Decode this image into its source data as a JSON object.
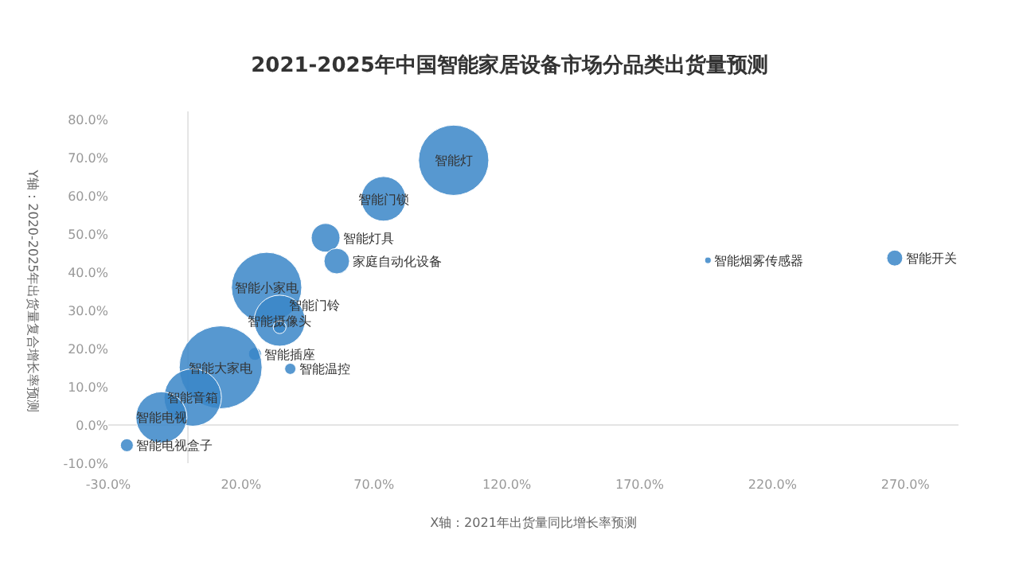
{
  "chart_data": {
    "type": "bubble",
    "title": "2021-2025年中国智能家居设备市场分品类出货量预测",
    "xlabel": "X轴：2021年出货量同比增长率预测",
    "ylabel": "Y轴：2020-2025年出货量复合增长率预测",
    "x": [
      100,
      73.6,
      51.8,
      56,
      29.6,
      34.5,
      34.5,
      25.2,
      38.5,
      12.3,
      1.8,
      -10,
      -23,
      195.7,
      266
    ],
    "values": [
      69.3,
      59.2,
      49,
      42.9,
      36,
      27.3,
      25.6,
      18.6,
      14.7,
      15.1,
      7.2,
      2,
      -5.3,
      43.1,
      43.7
    ],
    "sizes": [
      0.72,
      0.29,
      0.12,
      0.095,
      0.72,
      0.38,
      0.024,
      0.024,
      0.018,
      1,
      0.48,
      0.38,
      0.024,
      0.006,
      0.037
    ],
    "color": "#3a86c8",
    "annotations": [
      {
        "text": "智能灯",
        "x": 100,
        "y": 69.3
      },
      {
        "text": "智能门锁",
        "x": 73.6,
        "y": 59.2
      },
      {
        "text": "智能灯具",
        "x": 51.8,
        "y": 49
      },
      {
        "text": "家庭自动化设备",
        "x": 56,
        "y": 42.9
      },
      {
        "text": "智能小家电",
        "x": 29.6,
        "y": 36
      },
      {
        "text": "智能摄像头",
        "x": 34.5,
        "y": 27.3
      },
      {
        "text": "智能门铃",
        "x": 34.5,
        "y": 25.6
      },
      {
        "text": "智能插座",
        "x": 25.2,
        "y": 18.6
      },
      {
        "text": "智能温控",
        "x": 38.5,
        "y": 14.7
      },
      {
        "text": "智能大家电",
        "x": 12.3,
        "y": 15.1
      },
      {
        "text": "智能音箱",
        "x": 1.8,
        "y": 7.2
      },
      {
        "text": "智能电视",
        "x": -10,
        "y": 2
      },
      {
        "text": "智能电视盒子",
        "x": -23,
        "y": -5.3
      },
      {
        "text": "智能烟雾传感器",
        "x": 195.7,
        "y": 43.1
      },
      {
        "text": "智能开关",
        "x": 266,
        "y": 43.7
      }
    ],
    "xlim": [
      -30,
      290
    ],
    "xticks": [
      {
        "value": -30,
        "label": "-30.0%"
      },
      {
        "value": 20,
        "label": "20.0%"
      },
      {
        "value": 70,
        "label": "70.0%"
      },
      {
        "value": 120,
        "label": "120.0%"
      },
      {
        "value": 170,
        "label": "170.0%"
      },
      {
        "value": 220,
        "label": "220.0%"
      },
      {
        "value": 270,
        "label": "270.0%"
      }
    ],
    "ylim": [
      -10,
      80
    ],
    "yticks": [
      {
        "value": -10,
        "label": "-10.0%"
      },
      {
        "value": 0,
        "label": "0.0%"
      },
      {
        "value": 10,
        "label": "10.0%"
      },
      {
        "value": 20,
        "label": "20.0%"
      },
      {
        "value": 30,
        "label": "30.0%"
      },
      {
        "value": 40,
        "label": "40.0%"
      },
      {
        "value": 50,
        "label": "50.0%"
      },
      {
        "value": 60,
        "label": "60.0%"
      },
      {
        "value": 70,
        "label": "70.0%"
      },
      {
        "value": 80,
        "label": "80.0%"
      }
    ]
  }
}
